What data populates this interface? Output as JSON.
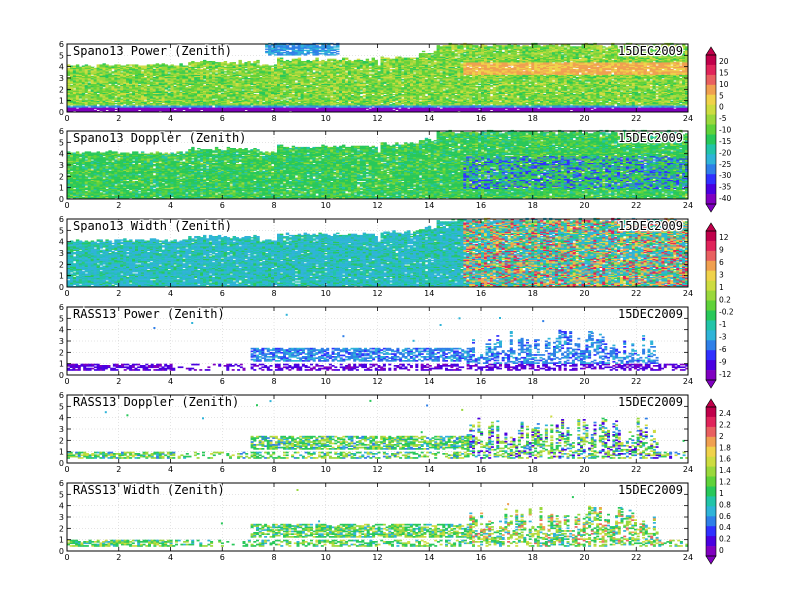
{
  "chart_data": [
    {
      "type": "heatmap",
      "title": "Spano13 Power (Zenith)",
      "date": "15DEC2009",
      "xlim": [
        0,
        24
      ],
      "ylim": [
        0,
        6
      ],
      "xticks": [
        "0",
        "2",
        "4",
        "6",
        "8",
        "10",
        "12",
        "14",
        "16",
        "18",
        "20",
        "22",
        "24"
      ],
      "yticks": [
        "0",
        "1",
        "2",
        "3",
        "4",
        "5",
        "6"
      ],
      "grid": true
    },
    {
      "type": "heatmap",
      "title": "Spano13 Doppler (Zenith)",
      "date": "15DEC2009",
      "xlim": [
        0,
        24
      ],
      "ylim": [
        0,
        6
      ],
      "xticks": [
        "0",
        "2",
        "4",
        "6",
        "8",
        "10",
        "12",
        "14",
        "16",
        "18",
        "20",
        "22",
        "24"
      ],
      "yticks": [
        "0",
        "1",
        "2",
        "3",
        "4",
        "5",
        "6"
      ],
      "grid": true
    },
    {
      "type": "heatmap",
      "title": "Spano13 Width (Zenith)",
      "date": "15DEC2009",
      "xlim": [
        0,
        24
      ],
      "ylim": [
        0,
        6
      ],
      "xticks": [
        "0",
        "2",
        "4",
        "6",
        "8",
        "10",
        "12",
        "14",
        "16",
        "18",
        "20",
        "22",
        "24"
      ],
      "yticks": [
        "0",
        "1",
        "2",
        "3",
        "4",
        "5",
        "6"
      ],
      "grid": true
    },
    {
      "type": "heatmap",
      "title": "RASS13 Power (Zenith)",
      "date": "15DEC2009",
      "xlim": [
        0,
        24
      ],
      "ylim": [
        0,
        6
      ],
      "xticks": [
        "0",
        "2",
        "4",
        "6",
        "8",
        "10",
        "12",
        "14",
        "16",
        "18",
        "20",
        "22",
        "24"
      ],
      "yticks": [
        "0",
        "1",
        "2",
        "3",
        "4",
        "5",
        "6"
      ],
      "grid": true
    },
    {
      "type": "heatmap",
      "title": "RASS13 Doppler (Zenith)",
      "date": "15DEC2009",
      "xlim": [
        0,
        24
      ],
      "ylim": [
        0,
        6
      ],
      "xticks": [
        "0",
        "2",
        "4",
        "6",
        "8",
        "10",
        "12",
        "14",
        "16",
        "18",
        "20",
        "22",
        "24"
      ],
      "yticks": [
        "0",
        "1",
        "2",
        "3",
        "4",
        "5",
        "6"
      ],
      "grid": true
    },
    {
      "type": "heatmap",
      "title": "RASS13 Width (Zenith)",
      "date": "15DEC2009",
      "xlim": [
        0,
        24
      ],
      "ylim": [
        0,
        6
      ],
      "xticks": [
        "0",
        "2",
        "4",
        "6",
        "8",
        "10",
        "12",
        "14",
        "16",
        "18",
        "20",
        "22",
        "24"
      ],
      "yticks": [
        "0",
        "1",
        "2",
        "3",
        "4",
        "5",
        "6"
      ],
      "grid": true
    }
  ],
  "colorbars": [
    {
      "for": "Spano13 Power / Spano13 Doppler",
      "labels": [
        "20",
        "15",
        "10",
        "5",
        "0",
        "-5",
        "-10",
        "-15",
        "-20",
        "-25",
        "-30",
        "-35",
        "-40"
      ]
    },
    {
      "for": "Spano13 Width / RASS13 Power",
      "labels": [
        "12",
        "9",
        "6",
        "3",
        "1",
        "0.2",
        "-0.2",
        "-1",
        "-3",
        "-6",
        "-9",
        "-12"
      ]
    },
    {
      "for": "RASS13 Doppler / RASS13 Width",
      "labels": [
        "2.4",
        "2.2",
        "2",
        "1.8",
        "1.6",
        "1.4",
        "1.2",
        "1",
        "0.8",
        "0.6",
        "0.4",
        "0.2",
        "0"
      ]
    }
  ],
  "palette": [
    "#8000c0",
    "#4a00e0",
    "#3030ff",
    "#2f7fe8",
    "#2fb4d8",
    "#22c4a8",
    "#28c85a",
    "#5fd23a",
    "#9ad83c",
    "#cddc40",
    "#f0d24a",
    "#f0a050",
    "#e96060",
    "#e0245a",
    "#c0004a"
  ]
}
